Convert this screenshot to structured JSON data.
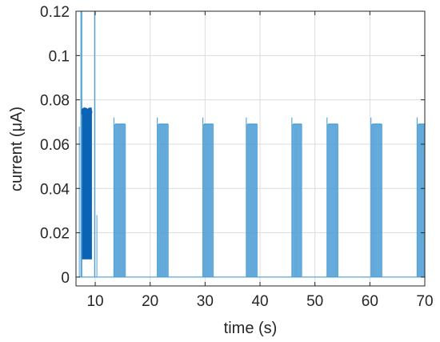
{
  "chart_data": {
    "type": "line",
    "title": "",
    "xlabel": "time (s)",
    "ylabel": "current (μA)",
    "xlim": [
      6.5,
      70
    ],
    "ylim": [
      -0.004,
      0.12
    ],
    "xticks": [
      10,
      20,
      30,
      40,
      50,
      60,
      70
    ],
    "yticks": [
      0,
      0.02,
      0.04,
      0.06,
      0.08,
      0.1,
      0.12
    ],
    "ytick_labels": [
      "0",
      "0.02",
      "0.04",
      "0.06",
      "0.08",
      "0.1",
      "0.12"
    ],
    "xtick_labels": [
      "10",
      "20",
      "30",
      "40",
      "50",
      "60",
      "70"
    ],
    "grid": true,
    "line_color": "#4f9fd6",
    "dense_color": "#0a63b5",
    "initial_transient": {
      "rise": [
        7.4,
        7.55
      ],
      "peak": 0.12,
      "dense_band": [
        7.6,
        9.4
      ],
      "dense_low": 0.008,
      "dense_high": 0.075,
      "spike_at": 9.9,
      "spike_peak": 0.12,
      "tail_spike_at": 10.3,
      "tail_spike_peak": 0.028
    },
    "pulses": [
      {
        "start": 13.4,
        "end": 15.5,
        "peak": 0.072,
        "plateau": 0.069
      },
      {
        "start": 21.3,
        "end": 23.3,
        "peak": 0.072,
        "plateau": 0.069
      },
      {
        "start": 29.6,
        "end": 31.5,
        "peak": 0.072,
        "plateau": 0.069
      },
      {
        "start": 37.5,
        "end": 39.5,
        "peak": 0.072,
        "plateau": 0.069
      },
      {
        "start": 45.8,
        "end": 47.6,
        "peak": 0.072,
        "plateau": 0.069
      },
      {
        "start": 52.2,
        "end": 54.2,
        "peak": 0.072,
        "plateau": 0.069
      },
      {
        "start": 60.2,
        "end": 62.2,
        "peak": 0.072,
        "plateau": 0.069
      },
      {
        "start": 68.6,
        "end": 70.0,
        "peak": 0.072,
        "plateau": 0.069
      }
    ]
  }
}
